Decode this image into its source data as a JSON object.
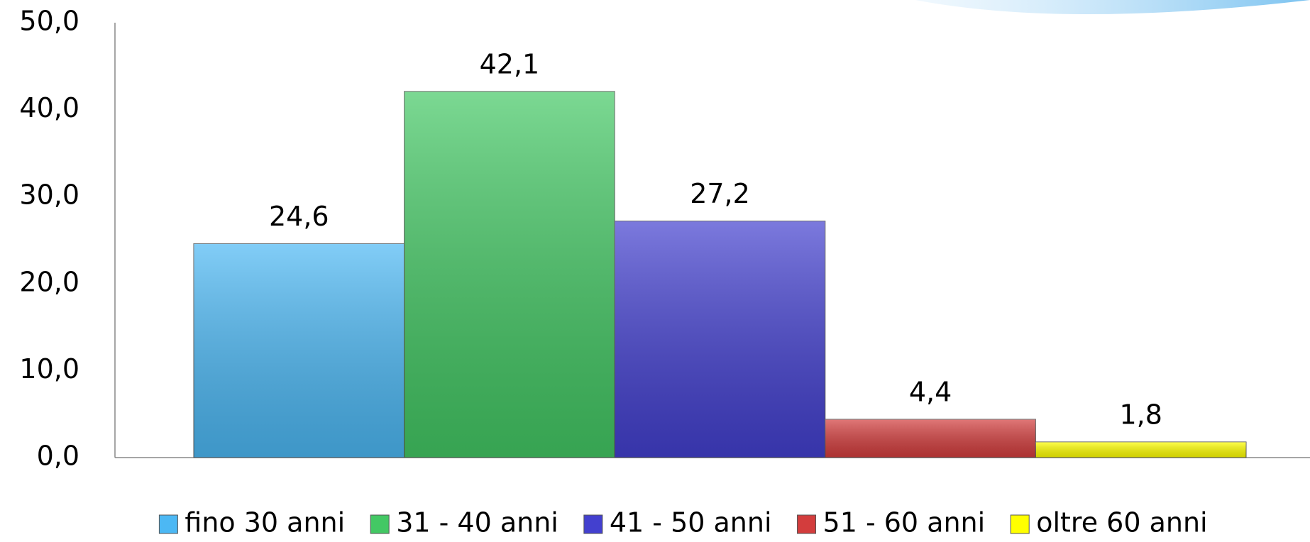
{
  "chart_data": {
    "type": "bar",
    "categories": [
      null
    ],
    "series": [
      {
        "name": "fino 30 anni",
        "color": "#4cb8f4",
        "values": [
          24.6
        ],
        "value_labels": [
          "24,6"
        ]
      },
      {
        "name": "31 - 40 anni",
        "color": "#43c864",
        "values": [
          42.1
        ],
        "value_labels": [
          "42,1"
        ]
      },
      {
        "name": "41 - 50 anni",
        "color": "#4340cf",
        "values": [
          27.2
        ],
        "value_labels": [
          "27,2"
        ]
      },
      {
        "name": "51 - 60 anni",
        "color": "#d33d3d",
        "values": [
          4.4
        ],
        "value_labels": [
          "4,4"
        ]
      },
      {
        "name": "oltre 60 anni",
        "color": "#ffff00",
        "values": [
          1.8
        ],
        "value_labels": [
          "1,8"
        ]
      }
    ],
    "ylim": [
      0,
      50
    ],
    "yticks": [
      {
        "value": 0,
        "label": "0,0"
      },
      {
        "value": 10,
        "label": "10,0"
      },
      {
        "value": 20,
        "label": "20,0"
      },
      {
        "value": 30,
        "label": "30,0"
      },
      {
        "value": 40,
        "label": "40,0"
      },
      {
        "value": 50,
        "label": "50,0"
      }
    ],
    "grid": false,
    "legend": "bottom"
  }
}
